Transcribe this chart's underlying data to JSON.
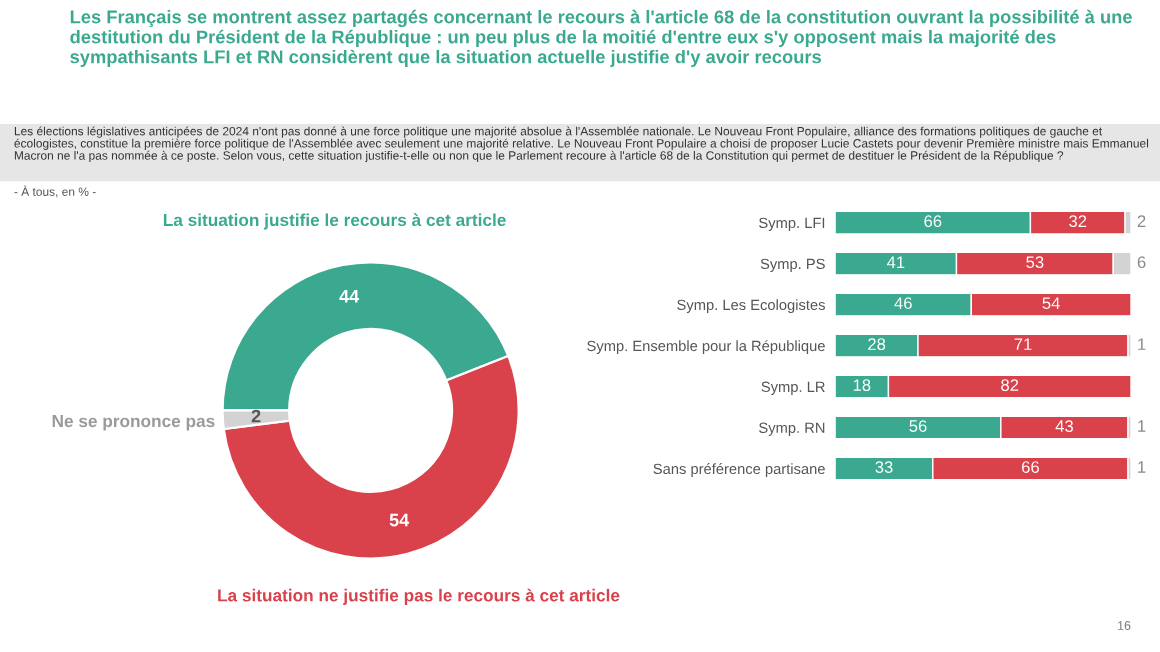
{
  "chart_data": [
    {
      "type": "donut",
      "title": "Les Français se montrent assez partagés concernant le recours à l'article 68 de la constitution ouvrant la possibilité à une destitution du Président de la République : un peu plus de la moitié d'entre eux s'y opposent mais la majorité des sympathisants LFI et RN considèrent que la situation actuelle justifie d'y avoir recours",
      "annotations": [
        "Les élections législatives anticipées de 2024 n'ont pas donné à une force politique une majorité absolue à l'Assemblée nationale. Le Nouveau Front Populaire, alliance des formations politiques de gauche et écologistes, constitue la première force politique de l'Assemblée avec seulement une majorité relative. Le Nouveau Front Populaire a choisi de proposer Lucie Castets pour devenir Première ministre mais Emmanuel Macron ne l'a pas nommée à ce poste. Selon vous, cette situation justifie-t-elle ou non que le Parlement recoure à l'article 68 de la Constitution qui permet de destituer le Président de la République ?",
        "- À tous, en % -",
        "16"
      ],
      "categories": [
        "La situation justifie le recours à cet article",
        "La situation ne justifie pas le recours à cet article",
        "Ne se prononce pas"
      ],
      "values": [
        44,
        54,
        2
      ],
      "colors": [
        "#3aa98f",
        "#d9414b",
        "#d3d3d3"
      ],
      "data_labels": true
    },
    {
      "type": "bar",
      "orientation": "horizontal",
      "stacked": true,
      "categories": [
        "Symp. LFI",
        "Symp. PS",
        "Symp. Les Ecologistes",
        "Symp. Ensemble pour la République",
        "Symp. LR",
        "Symp. RN",
        "Sans préférence partisane"
      ],
      "xlim": [
        0,
        100
      ],
      "tick_labels": "y",
      "series": [
        {
          "color": "#3aa98f",
          "values": [
            66,
            41,
            46,
            28,
            18,
            56,
            33
          ],
          "value_labels": [
            "66",
            "41",
            "46",
            "28",
            "18",
            "56",
            "33"
          ]
        },
        {
          "color": "#d9414b",
          "values": [
            32,
            53,
            54,
            71,
            82,
            43,
            66
          ],
          "value_labels": [
            "32",
            "53",
            "54",
            "71",
            "82",
            "43",
            "66"
          ]
        },
        {
          "color": "#d3d3d3",
          "values": [
            2,
            6,
            0,
            1,
            0,
            1,
            1
          ],
          "value_labels": [
            "2",
            "6",
            null,
            "1",
            null,
            "1",
            "1"
          ]
        }
      ]
    }
  ]
}
